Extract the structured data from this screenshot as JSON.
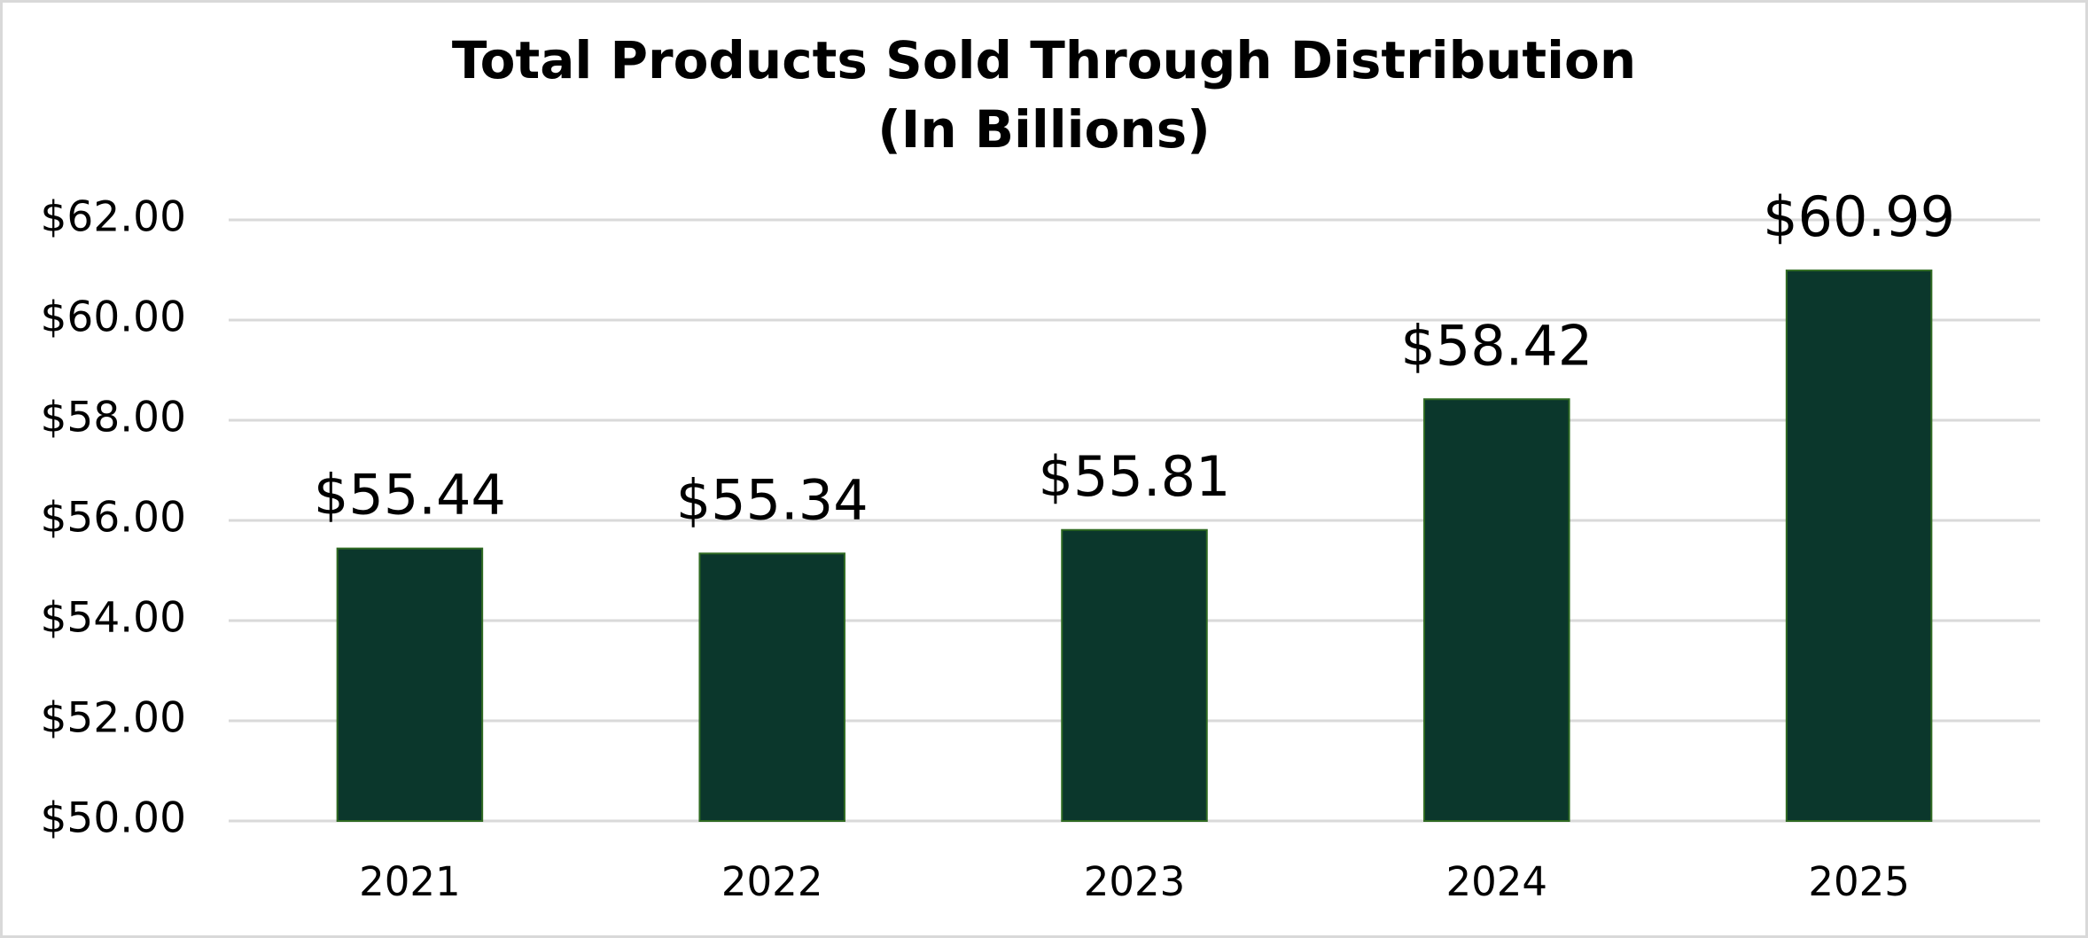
{
  "chart_data": {
    "type": "bar",
    "title": "Total Products Sold Through Distribution",
    "subtitle": "(In Billions)",
    "categories": [
      "2021",
      "2022",
      "2023",
      "2024",
      "2025"
    ],
    "values": [
      55.44,
      55.34,
      55.81,
      58.42,
      60.99
    ],
    "value_labels": [
      "$55.44",
      "$55.34",
      "$55.81",
      "$58.42",
      "$60.99"
    ],
    "color": "#0b372c",
    "ylim": [
      50,
      62
    ],
    "yticks": [
      {
        "value": 50,
        "label": "$50.00"
      },
      {
        "value": 52,
        "label": "$52.00"
      },
      {
        "value": 54,
        "label": "$54.00"
      },
      {
        "value": 56,
        "label": "$56.00"
      },
      {
        "value": 58,
        "label": "$58.00"
      },
      {
        "value": 60,
        "label": "$60.00"
      },
      {
        "value": 62,
        "label": "$62.00"
      }
    ],
    "grid": true
  }
}
